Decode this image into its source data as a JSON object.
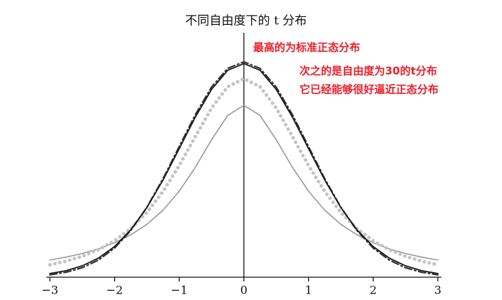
{
  "chart_data": {
    "type": "line",
    "title": "不同自由度下的 t 分布",
    "annotations": [
      "最高的为标准正态分布",
      "次之的是自由度为30的t分布",
      "它已经能够很好逼近正态分布"
    ],
    "x": [
      -3,
      -2.75,
      -2.5,
      -2.25,
      -2,
      -1.75,
      -1.5,
      -1.25,
      -1,
      -0.75,
      -0.5,
      -0.25,
      0,
      0.25,
      0.5,
      0.75,
      1,
      1.25,
      1.5,
      1.75,
      2,
      2.25,
      2.5,
      2.75,
      3
    ],
    "series": [
      {
        "color": "#999999",
        "dash": "",
        "width": 1.6,
        "values": [
          0.0318,
          0.0372,
          0.0439,
          0.0525,
          0.0637,
          0.0784,
          0.0979,
          0.1242,
          0.1592,
          0.2037,
          0.2546,
          0.2996,
          0.3183,
          0.2996,
          0.2546,
          0.2037,
          0.1592,
          0.1242,
          0.0979,
          0.0784,
          0.0637,
          0.0525,
          0.0439,
          0.0372,
          0.0318
        ]
      },
      {
        "color": "#c4c4c4",
        "dash": "0.1,7",
        "width": 5,
        "values": [
          0.023,
          0.0297,
          0.0387,
          0.0509,
          0.0675,
          0.09,
          0.12,
          0.1589,
          0.2068,
          0.2607,
          0.3132,
          0.3528,
          0.3676,
          0.3528,
          0.3132,
          0.2607,
          0.2068,
          0.1589,
          0.12,
          0.09,
          0.0675,
          0.0509,
          0.0387,
          0.0297,
          0.023
        ]
      },
      {
        "color": "#333333",
        "dash": "10,4,2,4",
        "width": 2.2,
        "values": [
          0.0044,
          0.0091,
          0.0175,
          0.0317,
          0.054,
          0.0863,
          0.1295,
          0.1826,
          0.242,
          0.3011,
          0.3521,
          0.3867,
          0.3989,
          0.3867,
          0.3521,
          0.3011,
          0.242,
          0.1826,
          0.1295,
          0.0863,
          0.054,
          0.0317,
          0.0175,
          0.0091,
          0.0044
        ]
      },
      {
        "color": "#1a1a1a",
        "dash": "",
        "width": 1.8,
        "values": [
          0.0068,
          0.0121,
          0.0211,
          0.0353,
          0.0568,
          0.0877,
          0.129,
          0.1801,
          0.238,
          0.2966,
          0.3478,
          0.3831,
          0.3956,
          0.3831,
          0.3478,
          0.2966,
          0.238,
          0.1801,
          0.129,
          0.0877,
          0.0568,
          0.0353,
          0.0211,
          0.0121,
          0.0068
        ]
      }
    ],
    "xlim": [
      -3,
      3
    ],
    "ylim": [
      0,
      0.45
    ],
    "xticks": [
      {
        "value": -3,
        "label": "−3"
      },
      {
        "value": -2,
        "label": "−2"
      },
      {
        "value": -1,
        "label": "−1"
      },
      0,
      1,
      2,
      3
    ]
  }
}
